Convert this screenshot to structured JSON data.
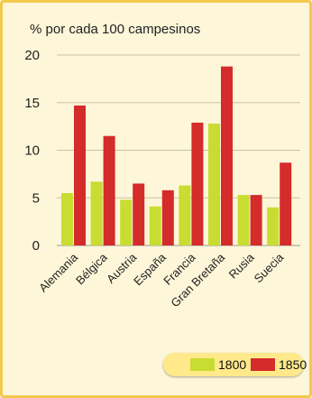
{
  "chart_data": {
    "type": "bar",
    "title": "% por cada 100 campesinos",
    "categories": [
      "Alemania",
      "Bélgica",
      "Austria",
      "España",
      "Francia",
      "Gran Bretaña",
      "Rusia",
      "Suecia"
    ],
    "series": [
      {
        "name": "1800",
        "color": "#c8dc32",
        "values": [
          5.5,
          6.7,
          4.8,
          4.1,
          6.3,
          12.8,
          5.3,
          4.0
        ]
      },
      {
        "name": "1850",
        "color": "#d42b2b",
        "values": [
          14.7,
          11.5,
          6.5,
          5.8,
          12.9,
          18.8,
          5.3,
          8.7
        ]
      }
    ],
    "yticks": [
      0,
      5,
      10,
      15,
      20
    ],
    "ylim": [
      0,
      20
    ],
    "grid": true,
    "legend_position": "bottom-right"
  }
}
